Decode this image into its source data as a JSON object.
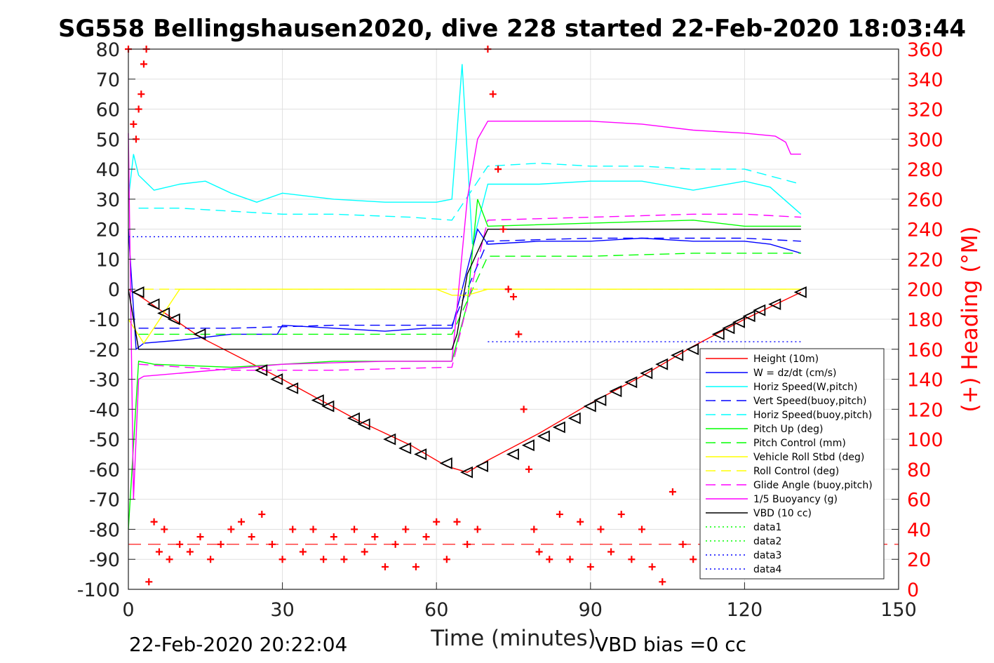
{
  "title": "SG558 Bellingshausen2020, dive 228 started 22-Feb-2020 18:03:44",
  "footer": {
    "left": "22-Feb-2020 20:22:04",
    "right": "VBD bias =0 cc"
  },
  "colors": {
    "height": "#ff0000",
    "w": "#0000ff",
    "horiz_w": "#00ffff",
    "vert_buoy": "#0000ff",
    "horiz_buoy": "#00ffff",
    "pitch_up": "#00ff00",
    "pitch_control": "#00ff00",
    "roll": "#ffff00",
    "roll_control": "#ffff00",
    "glide_angle": "#ff00ff",
    "buoyancy": "#ff00ff",
    "vbd": "#000000",
    "data1": "#00ff00",
    "data2": "#00ff00",
    "data3": "#0000ff",
    "data4": "#0000ff",
    "heading": "#ff0000"
  },
  "chart_data": {
    "type": "line",
    "xlabel": "Time (minutes)",
    "ylabel": "",
    "ylabel_right": "(+) Heading (°M)",
    "xlim": [
      0,
      150
    ],
    "ylim": [
      -100,
      80
    ],
    "ylim_right": [
      0,
      360
    ],
    "xticks": [
      0,
      30,
      60,
      90,
      120,
      150
    ],
    "yticks": [
      80,
      70,
      60,
      50,
      40,
      30,
      20,
      10,
      0,
      -10,
      -20,
      -30,
      -40,
      -50,
      -60,
      -70,
      -80,
      -90,
      -100
    ],
    "yticks_right": [
      360,
      340,
      320,
      300,
      280,
      260,
      240,
      220,
      200,
      180,
      160,
      140,
      120,
      100,
      80,
      60,
      40,
      20,
      0
    ],
    "grid": true,
    "legend_position": "lower-right",
    "series": [
      {
        "name": "Height (10m)",
        "style": "solid",
        "color": "#ff0000",
        "x": [
          0,
          2,
          14,
          30,
          45,
          55,
          62,
          66,
          70,
          80,
          90,
          100,
          110,
          120,
          131
        ],
        "y": [
          0,
          -2,
          -16,
          -30,
          -44,
          -52,
          -59,
          -61,
          -57,
          -48,
          -38,
          -29,
          -19,
          -10,
          -1
        ]
      },
      {
        "name": "W = dz/dt (cm/s)",
        "style": "solid",
        "color": "#0000ff",
        "x": [
          0,
          1.5,
          3,
          10,
          20,
          29,
          30,
          40,
          50,
          58,
          63,
          65,
          68,
          70,
          80,
          90,
          100,
          110,
          120,
          125,
          131
        ],
        "y": [
          20,
          -20,
          -18,
          -17,
          -15,
          -15,
          -12,
          -13,
          -14,
          -13,
          -13,
          0,
          20,
          15,
          16,
          16,
          17,
          16,
          16,
          15,
          12
        ]
      },
      {
        "name": "Horiz Speed(W,pitch)",
        "style": "solid",
        "color": "#00ffff",
        "x": [
          0,
          1,
          2,
          5,
          10,
          15,
          20,
          25,
          30,
          40,
          50,
          60,
          63,
          65,
          67,
          70,
          80,
          90,
          100,
          110,
          120,
          125,
          131
        ],
        "y": [
          30,
          45,
          38,
          33,
          35,
          36,
          32,
          29,
          32,
          30,
          29,
          29,
          30,
          75,
          15,
          35,
          35,
          36,
          36,
          33,
          36,
          34,
          25
        ]
      },
      {
        "name": "Vert Speed(buoy,pitch)",
        "style": "dashed",
        "color": "#0000ff",
        "x": [
          2,
          20,
          40,
          63,
          70,
          90,
          110,
          120,
          131
        ],
        "y": [
          -13,
          -13,
          -12,
          -12,
          16,
          17,
          17,
          17,
          16
        ]
      },
      {
        "name": "Horiz Speed(buoy,pitch)",
        "style": "dashed",
        "color": "#00ffff",
        "x": [
          2,
          10,
          20,
          30,
          40,
          55,
          63,
          70,
          80,
          90,
          100,
          110,
          120,
          131
        ],
        "y": [
          27,
          27,
          26,
          25,
          25,
          24,
          23,
          41,
          42,
          41,
          41,
          40,
          40,
          35
        ]
      },
      {
        "name": "Pitch Up (deg)",
        "style": "solid",
        "color": "#00ff00",
        "x": [
          0,
          2,
          5,
          20,
          40,
          63,
          66,
          68,
          70,
          90,
          110,
          120,
          131
        ],
        "y": [
          -80,
          -24,
          -25,
          -26,
          -24,
          -24,
          -5,
          30,
          21,
          22,
          23,
          21,
          21
        ]
      },
      {
        "name": "Pitch Control (mm)",
        "style": "dashed",
        "color": "#00ff00",
        "x": [
          2,
          30,
          63,
          70,
          90,
          110,
          131
        ],
        "y": [
          -15,
          -15,
          -15,
          11,
          11,
          12,
          12
        ]
      },
      {
        "name": "Vehicle Roll Stbd (deg)",
        "style": "solid",
        "color": "#ffff00",
        "x": [
          0,
          3,
          10,
          20,
          30,
          40,
          50,
          60,
          63,
          66,
          70,
          80,
          90,
          100,
          110,
          120,
          131
        ],
        "y": [
          -10,
          -18,
          0,
          0,
          0,
          0,
          0,
          0,
          -2,
          -2,
          0,
          0,
          0,
          0,
          0,
          0,
          0
        ]
      },
      {
        "name": "Roll Control (deg)",
        "style": "dashed",
        "color": "#ffff00",
        "x": [
          3,
          10,
          20,
          30,
          40,
          50,
          60,
          63,
          70,
          80,
          90,
          100,
          110,
          120,
          131
        ],
        "y": [
          0,
          0,
          0,
          0,
          0,
          0,
          0,
          0,
          0,
          0,
          0,
          0,
          0,
          0,
          0
        ]
      },
      {
        "name": "Glide Angle (buoy,pitch)",
        "style": "dashed",
        "color": "#ff00ff",
        "x": [
          2,
          20,
          40,
          63,
          70,
          90,
          110,
          120,
          131
        ],
        "y": [
          -25,
          -27,
          -27,
          -26,
          23,
          24,
          25,
          25,
          24
        ]
      },
      {
        "name": "1/5 Buoyancy (g)",
        "style": "solid",
        "color": "#ff00ff",
        "x": [
          0,
          1,
          2,
          3,
          10,
          30,
          50,
          63,
          66,
          68,
          70,
          90,
          100,
          110,
          120,
          126,
          128,
          129,
          131
        ],
        "y": [
          52,
          -70,
          -30,
          -29,
          -28,
          -25,
          -24,
          -24,
          30,
          50,
          56,
          56,
          55,
          53,
          52,
          51,
          49,
          45,
          45
        ]
      },
      {
        "name": "VBD (10 cc)",
        "style": "solid",
        "color": "#000000",
        "x": [
          0,
          2,
          30,
          63,
          64,
          66,
          70,
          131
        ],
        "y": [
          0,
          -20,
          -20,
          -20,
          -15,
          5,
          20,
          20
        ]
      },
      {
        "name": "data1",
        "style": "dotted",
        "color": "#00ff00",
        "x": [],
        "y": []
      },
      {
        "name": "data2",
        "style": "dotted",
        "color": "#00ff00",
        "x": [],
        "y": []
      },
      {
        "name": "data3",
        "style": "dotted",
        "color": "#0000ff",
        "x": [
          0,
          65
        ],
        "y": [
          17.5,
          17.5
        ]
      },
      {
        "name": "data4",
        "style": "dotted",
        "color": "#0000ff",
        "x": [
          70,
          131
        ],
        "y": [
          -17.5,
          -17.5
        ]
      }
    ],
    "heading_markers": {
      "axis": "right",
      "marker": "+",
      "color": "#ff0000",
      "x": [
        0,
        1,
        1.5,
        2,
        2.5,
        3,
        3.5,
        4,
        5,
        6,
        7,
        8,
        10,
        12,
        14,
        16,
        18,
        20,
        22,
        24,
        26,
        28,
        30,
        32,
        34,
        36,
        38,
        40,
        42,
        44,
        46,
        48,
        50,
        52,
        54,
        56,
        58,
        60,
        62,
        64,
        66,
        68,
        70,
        71,
        72,
        73,
        74,
        75,
        76,
        77,
        78,
        79,
        80,
        82,
        84,
        86,
        88,
        90,
        92,
        94,
        96,
        98,
        100,
        102,
        104,
        106,
        108,
        110
      ],
      "y": [
        360,
        310,
        300,
        320,
        330,
        350,
        360,
        5,
        45,
        25,
        40,
        20,
        30,
        25,
        35,
        20,
        30,
        40,
        45,
        35,
        50,
        30,
        20,
        40,
        25,
        40,
        20,
        35,
        20,
        40,
        25,
        35,
        15,
        30,
        40,
        15,
        35,
        45,
        20,
        45,
        30,
        40,
        360,
        330,
        280,
        240,
        200,
        195,
        170,
        120,
        80,
        40,
        25,
        20,
        50,
        20,
        45,
        15,
        40,
        25,
        50,
        20,
        40,
        15,
        5,
        65,
        30,
        20
      ]
    },
    "heading_reference": {
      "value": 30,
      "style": "dashed",
      "color": "#ff0000"
    },
    "vbd_markers": {
      "marker": "triangle",
      "color": "#000000",
      "x": [
        2,
        5,
        7,
        9,
        14,
        26,
        29,
        32,
        37,
        39,
        44,
        46,
        51,
        54,
        57,
        62,
        66,
        69,
        75,
        78,
        81,
        84,
        87,
        90,
        92,
        95,
        98,
        101,
        104,
        107,
        110,
        115,
        117,
        119,
        121,
        123,
        126,
        131
      ],
      "y": [
        -1,
        -5,
        -8,
        -10,
        -15,
        -27,
        -30,
        -33,
        -37,
        -39,
        -43,
        -45,
        -50,
        -53,
        -55,
        -58,
        -61,
        -59,
        -55,
        -52,
        -49,
        -46,
        -43,
        -39,
        -37,
        -34,
        -31,
        -28,
        -25,
        -22,
        -20,
        -15,
        -13,
        -11,
        -9,
        -7,
        -5,
        -1
      ]
    }
  }
}
